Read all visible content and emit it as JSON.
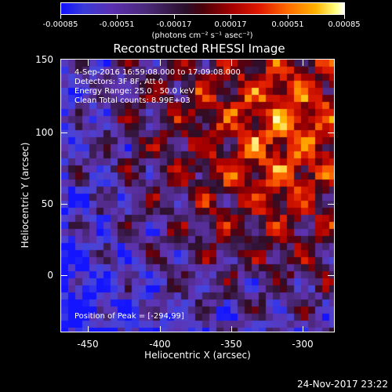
{
  "colorbar": {
    "tick_labels": [
      "-0.00085",
      "-0.00051",
      "-0.00017",
      "0.00017",
      "0.00051",
      "0.00085"
    ],
    "units": "(photons cm⁻² s⁻¹ asec⁻²)"
  },
  "title": "Reconstructed RHESSI Image",
  "info": {
    "time_range": "4-Sep-2016 16:59:08.000 to 17:09:08.000",
    "detectors": "Detectors: 3F 8F, Att 0",
    "energy": "Energy Range: 25.0 - 50.0 keV",
    "method": "Clean     Total counts: 8.99E+03"
  },
  "peak": "Position of Peak = [-294,99]",
  "axes": {
    "xlabel": "Heliocentric X (arcsec)",
    "ylabel": "Heliocentric Y (arcsec)",
    "xticks": [
      "-450",
      "-400",
      "-350",
      "-300"
    ],
    "yticks": [
      "150",
      "100",
      "50",
      "0"
    ]
  },
  "footer": "24-Nov-2017 23:22"
}
